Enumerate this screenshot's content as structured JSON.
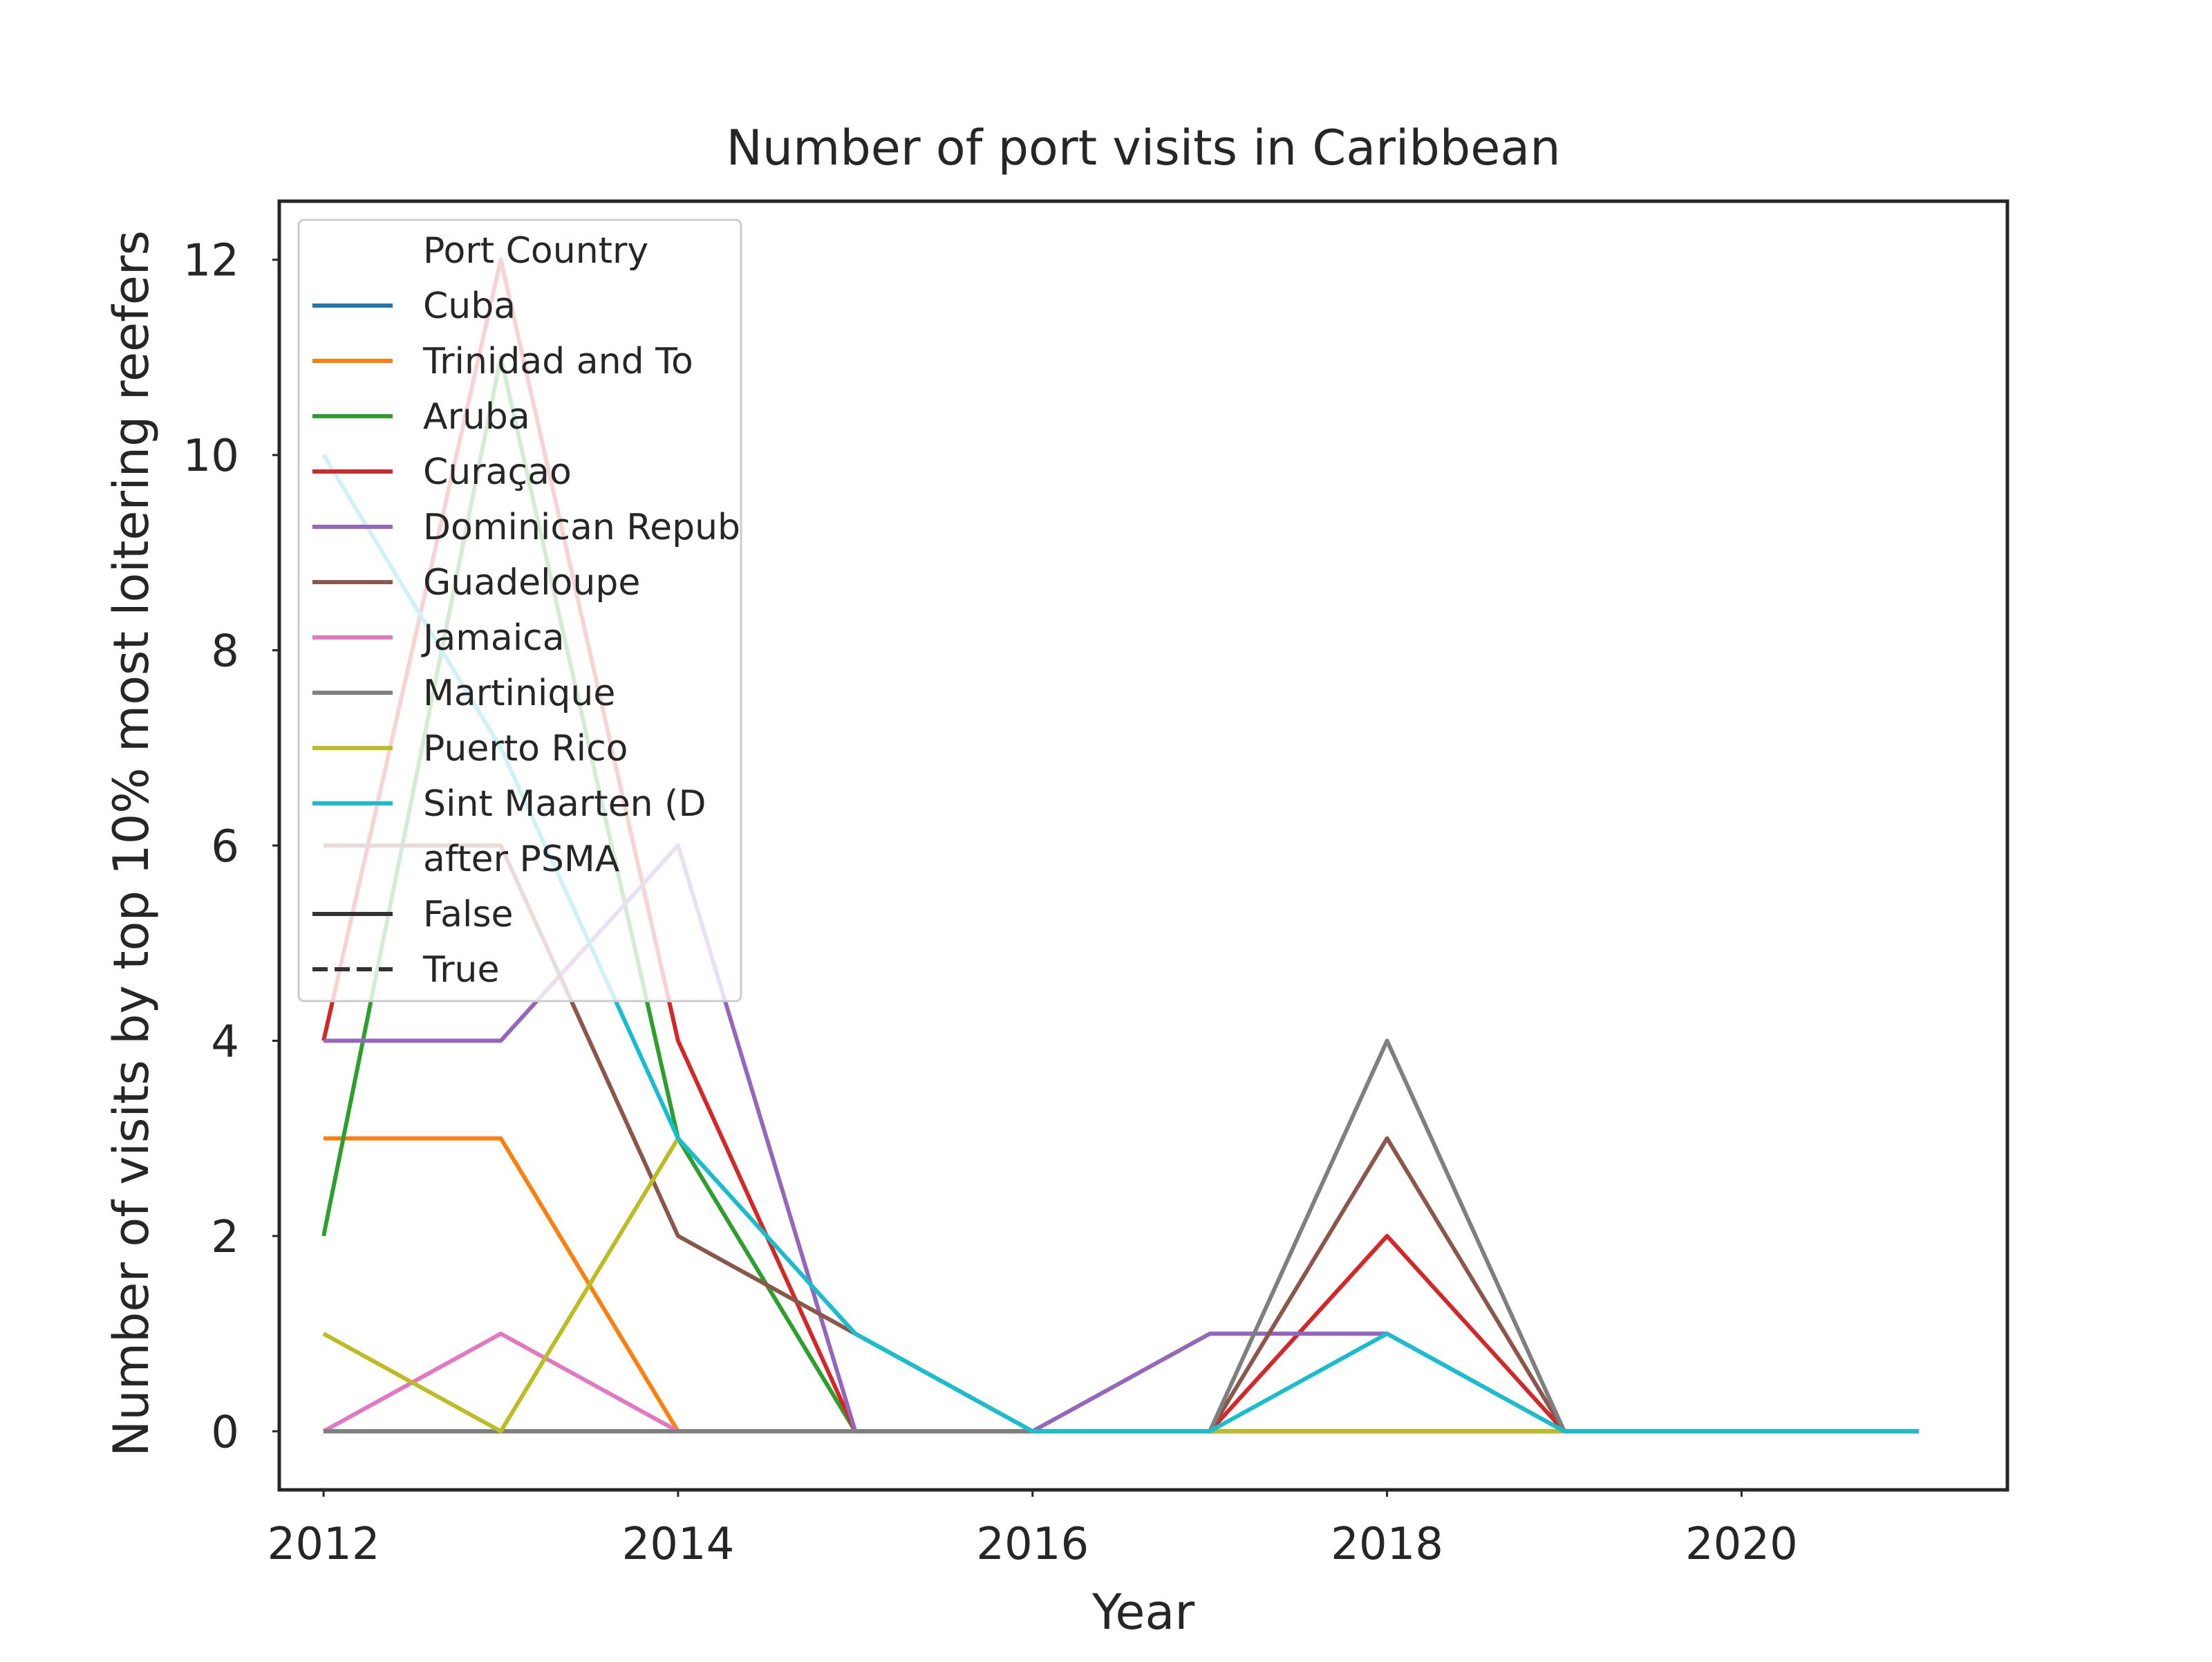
{
  "chart_data": {
    "type": "line",
    "title": "Number of port visits in Caribbean",
    "xlabel": "Year",
    "ylabel": "Number of visits by top 10% most loitering reefers",
    "xlim": [
      2011.75,
      2021.5
    ],
    "ylim": [
      -0.6,
      12.6
    ],
    "xticks": [
      2012,
      2014,
      2016,
      2018,
      2020
    ],
    "yticks": [
      0,
      2,
      4,
      6,
      8,
      10,
      12
    ],
    "grid": false,
    "legend": {
      "placement": "upper-left",
      "hue_title": "Port Country",
      "style_title": "after PSMA",
      "style_entries": [
        {
          "label": "False",
          "dash": "solid"
        },
        {
          "label": "True",
          "dash": "dashed"
        }
      ]
    },
    "x": [
      2012,
      2013,
      2014,
      2015,
      2016,
      2017,
      2018,
      2019,
      2020,
      2021
    ],
    "series": [
      {
        "name": "Cuba",
        "color": "#1f77b4",
        "values": [
          0,
          0,
          0,
          0,
          0,
          0,
          0,
          0,
          0,
          0
        ]
      },
      {
        "name": "Trinidad and To",
        "color": "#ff7f0e",
        "values": [
          3,
          3,
          0,
          0,
          0,
          0,
          0,
          0,
          0,
          0
        ]
      },
      {
        "name": "Aruba",
        "color": "#2ca02c",
        "values": [
          2,
          11,
          3,
          0,
          0,
          0,
          0,
          0,
          0,
          0
        ]
      },
      {
        "name": "Curaçao",
        "color": "#d62728",
        "values": [
          4,
          12,
          4,
          0,
          0,
          0,
          2,
          0,
          0,
          0
        ]
      },
      {
        "name": "Dominican Repub",
        "color": "#9467bd",
        "values": [
          4,
          4,
          6,
          0,
          0,
          1,
          1,
          0,
          0,
          0
        ]
      },
      {
        "name": "Guadeloupe",
        "color": "#8c564b",
        "values": [
          6,
          6,
          2,
          1,
          0,
          0,
          3,
          0,
          0,
          0
        ]
      },
      {
        "name": "Jamaica",
        "color": "#e377c2",
        "values": [
          0,
          1,
          0,
          0,
          0,
          0,
          0,
          0,
          0,
          0
        ]
      },
      {
        "name": "Martinique",
        "color": "#7f7f7f",
        "values": [
          0,
          0,
          0,
          0,
          0,
          0,
          4,
          0,
          0,
          0
        ]
      },
      {
        "name": "Puerto Rico",
        "color": "#bcbd22",
        "values": [
          1,
          0,
          3,
          1,
          0,
          0,
          0,
          0,
          0,
          0
        ]
      },
      {
        "name": "Sint Maarten (D",
        "color": "#17becf",
        "values": [
          10,
          7,
          3,
          1,
          0,
          0,
          1,
          0,
          0,
          0
        ]
      }
    ]
  }
}
